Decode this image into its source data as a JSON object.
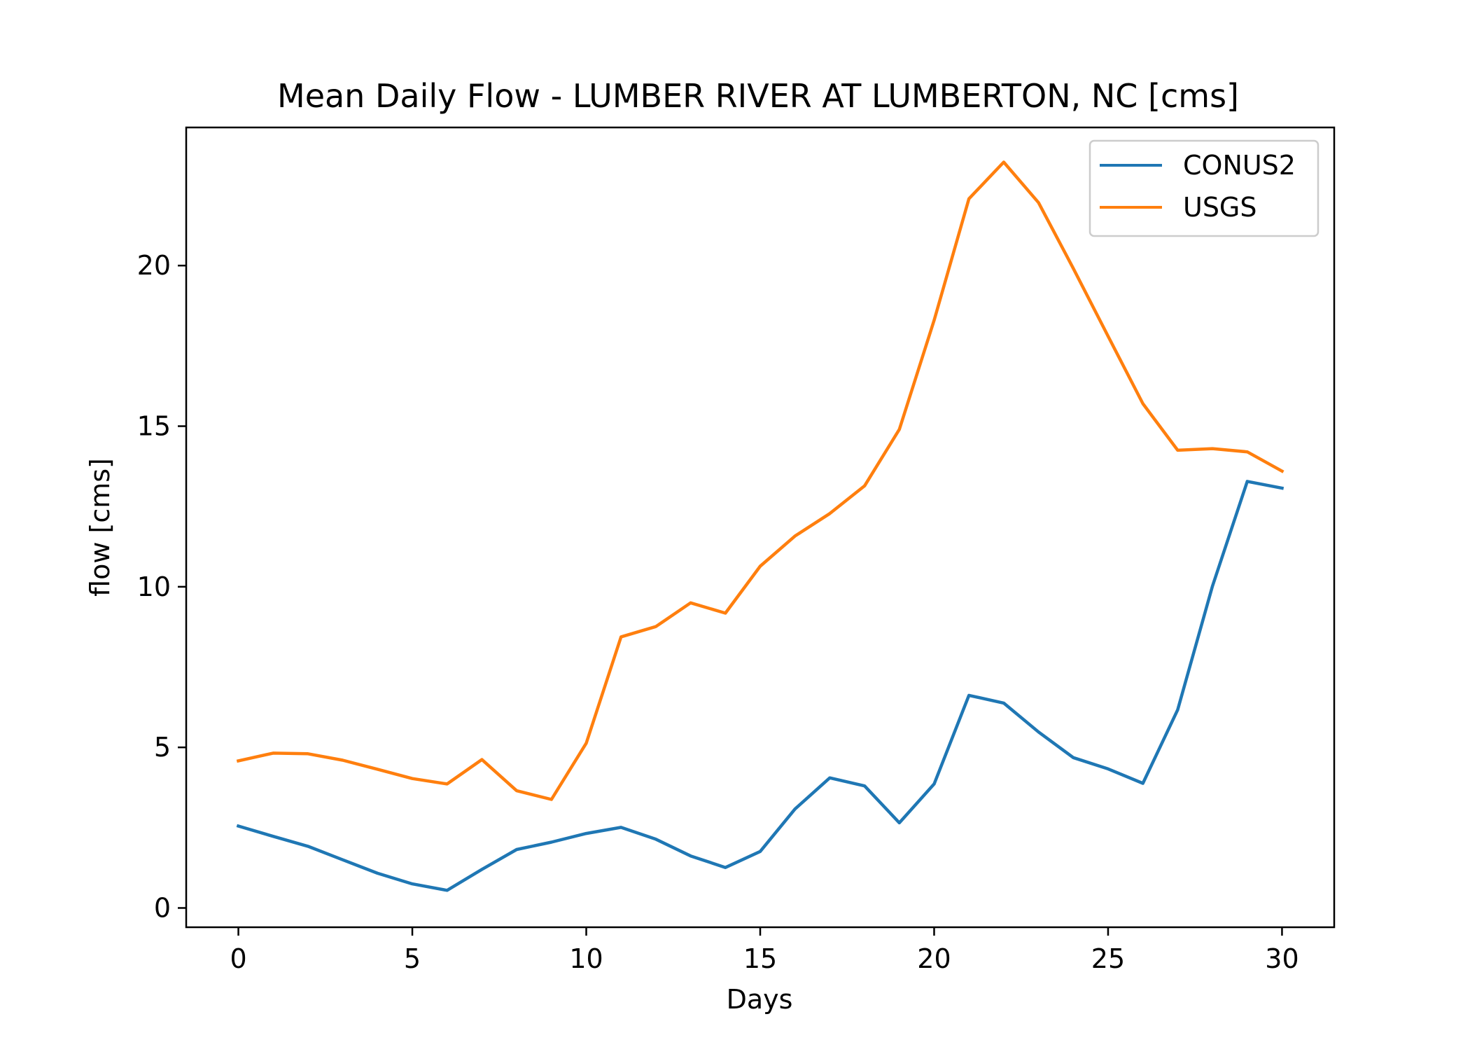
{
  "chart_data": {
    "type": "line",
    "title": "Mean Daily Flow - LUMBER RIVER AT LUMBERTON, NC [cms]",
    "xlabel": "Days",
    "ylabel": "flow [cms]",
    "xlim": [
      -1.5,
      31.5
    ],
    "ylim": [
      -0.6,
      24.3
    ],
    "xticks": [
      0,
      5,
      10,
      15,
      20,
      25,
      30
    ],
    "yticks": [
      0,
      5,
      10,
      15,
      20
    ],
    "grid": false,
    "legend_position": "top-right",
    "x": [
      0,
      1,
      2,
      3,
      4,
      5,
      6,
      7,
      8,
      9,
      10,
      11,
      12,
      13,
      14,
      15,
      16,
      17,
      18,
      19,
      20,
      21,
      22,
      23,
      24,
      25,
      26,
      27,
      28,
      29,
      30
    ],
    "series": [
      {
        "name": "CONUS2",
        "color": "#1f77b4",
        "values": [
          2.55,
          2.23,
          1.92,
          1.5,
          1.08,
          0.75,
          0.55,
          1.2,
          1.82,
          2.05,
          2.32,
          2.51,
          2.14,
          1.62,
          1.26,
          1.76,
          3.08,
          4.05,
          3.8,
          2.65,
          3.86,
          6.62,
          6.38,
          5.48,
          4.68,
          4.33,
          3.88,
          6.17,
          10.02,
          13.28,
          13.07
        ]
      },
      {
        "name": "USGS",
        "color": "#ff7f0e",
        "values": [
          4.58,
          4.82,
          4.8,
          4.6,
          4.32,
          4.03,
          3.86,
          4.62,
          3.65,
          3.38,
          5.13,
          8.44,
          8.76,
          9.5,
          9.18,
          10.64,
          11.58,
          12.28,
          13.14,
          14.9,
          18.3,
          22.08,
          23.22,
          21.96,
          19.91,
          17.8,
          15.7,
          14.25,
          14.3,
          14.2,
          13.6
        ]
      }
    ]
  }
}
